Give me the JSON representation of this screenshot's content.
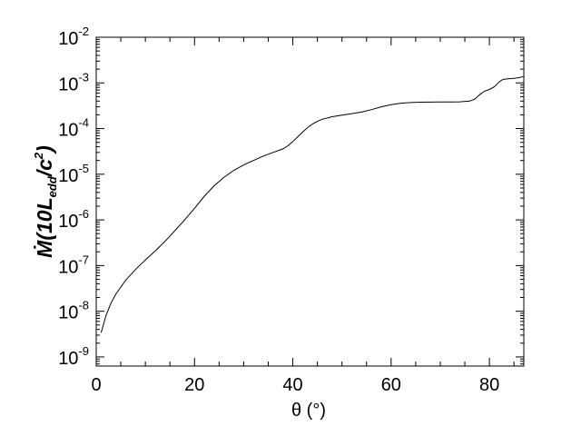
{
  "chart_data": {
    "type": "line",
    "title": "",
    "xlabel": "θ (°)",
    "ylabel": {
      "prefix": "Ṁ(10L",
      "subscript": "edd",
      "middle": "/c",
      "superscript": "2",
      "suffix": ")"
    },
    "xlim": [
      0,
      87
    ],
    "ylim_log10": [
      -9.2,
      -2
    ],
    "yscale": "log",
    "x_ticks": [
      "0",
      "20",
      "40",
      "60",
      "80"
    ],
    "x_tick_values": [
      0,
      20,
      40,
      60,
      80
    ],
    "y_ticks": [
      {
        "base": "10",
        "exp": "-2"
      },
      {
        "base": "10",
        "exp": "-3"
      },
      {
        "base": "10",
        "exp": "-4"
      },
      {
        "base": "10",
        "exp": "-5"
      },
      {
        "base": "10",
        "exp": "-6"
      },
      {
        "base": "10",
        "exp": "-7"
      },
      {
        "base": "10",
        "exp": "-8"
      },
      {
        "base": "10",
        "exp": "-9"
      }
    ],
    "y_tick_exponents": [
      -2,
      -3,
      -4,
      -5,
      -6,
      -7,
      -8,
      -9
    ],
    "grid": false,
    "legend": "none",
    "series": [
      {
        "x": [
          1,
          2,
          3,
          4,
          6,
          8,
          10,
          12,
          14,
          16,
          18,
          20,
          22,
          24,
          26,
          28,
          30,
          32,
          34,
          36,
          38,
          39,
          40,
          41,
          42,
          43,
          44,
          45,
          46,
          48,
          50,
          52,
          54,
          56,
          58,
          60,
          62,
          64,
          66,
          68,
          70,
          72,
          74,
          76,
          77,
          78,
          79,
          80,
          81,
          82,
          82.5,
          83,
          84,
          85,
          86,
          87
        ],
        "y": [
          3.4e-09,
          8.1e-09,
          1.5e-08,
          2.4e-08,
          4.8e-08,
          8.2e-08,
          1.33e-07,
          2.1e-07,
          3.4e-07,
          5.8e-07,
          1e-06,
          1.8e-06,
          3.3e-06,
          5.6e-06,
          8.6e-06,
          1.22e-05,
          1.6e-05,
          2e-05,
          2.5e-05,
          3e-05,
          3.6e-05,
          4.2e-05,
          5.2e-05,
          6.6e-05,
          8.4e-05,
          0.000105,
          0.000126,
          0.000144,
          0.00016,
          0.000182,
          0.000197,
          0.000212,
          0.00023,
          0.00026,
          0.0003,
          0.000335,
          0.00036,
          0.000372,
          0.000378,
          0.00038,
          0.000382,
          0.000382,
          0.000385,
          0.0004,
          0.00044,
          0.00055,
          0.00066,
          0.00072,
          0.00082,
          0.00105,
          0.00115,
          0.0012,
          0.00124,
          0.00126,
          0.0013,
          0.00138
        ]
      }
    ]
  }
}
